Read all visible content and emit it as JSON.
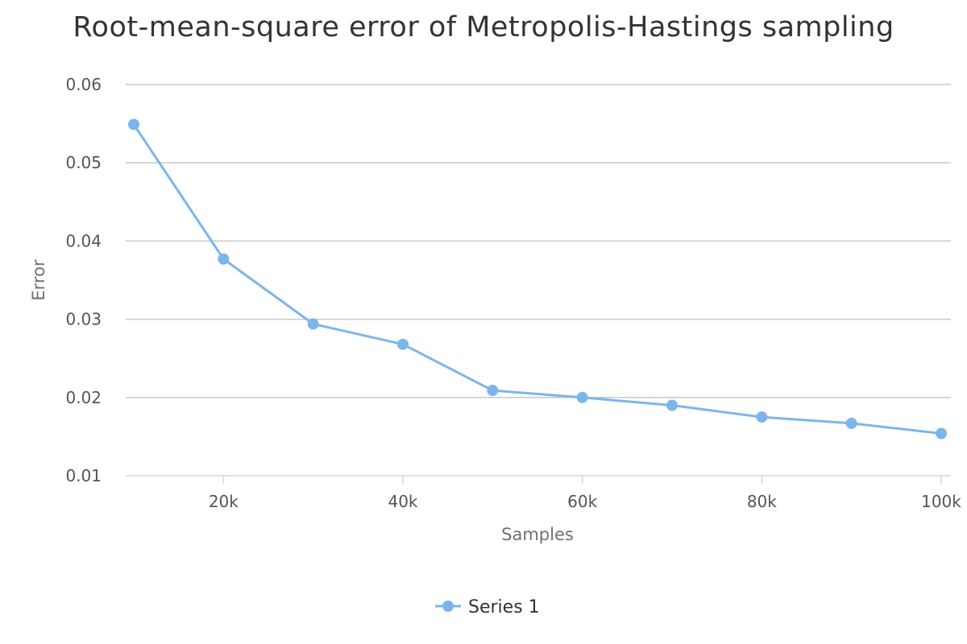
{
  "chart_data": {
    "type": "line",
    "title": "Root-mean-square error of Metropolis-Hastings sampling",
    "xlabel": "Samples",
    "ylabel": "Error",
    "x": [
      10000,
      20000,
      30000,
      40000,
      50000,
      60000,
      70000,
      80000,
      90000,
      100000
    ],
    "xlim": [
      10000,
      100000
    ],
    "ylim": [
      0.01,
      0.06
    ],
    "x_ticks": [
      20000,
      40000,
      60000,
      80000,
      100000
    ],
    "x_tick_labels": [
      "20k",
      "40k",
      "60k",
      "80k",
      "100k"
    ],
    "y_ticks": [
      0.01,
      0.02,
      0.03,
      0.04,
      0.05,
      0.06
    ],
    "y_tick_labels": [
      "0.01",
      "0.02",
      "0.03",
      "0.04",
      "0.05",
      "0.06"
    ],
    "grid": "horizontal",
    "legend_position": "bottom-center",
    "series": [
      {
        "name": "Series 1",
        "color": "#7cb5ec",
        "values": [
          0.0549,
          0.0377,
          0.0294,
          0.0268,
          0.0209,
          0.02,
          0.019,
          0.0175,
          0.0167,
          0.0154
        ]
      }
    ]
  }
}
